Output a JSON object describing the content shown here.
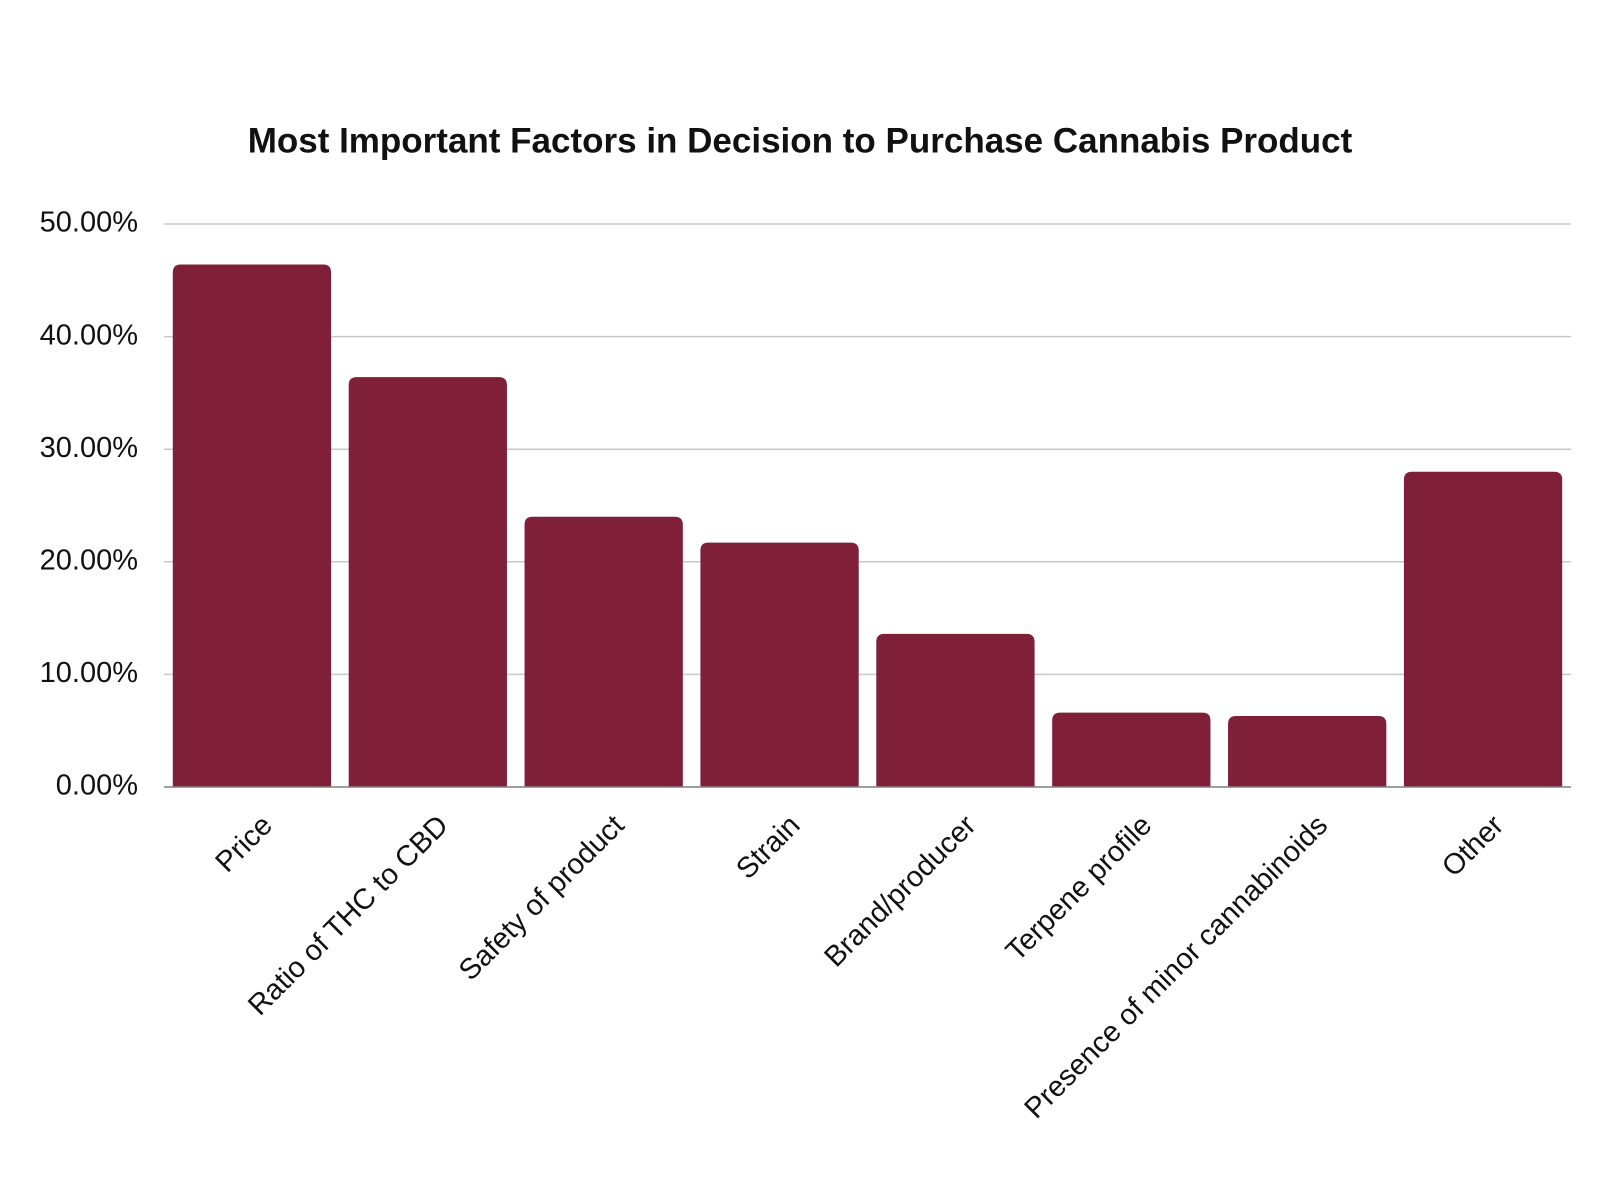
{
  "chart_data": {
    "type": "bar",
    "title": "Most Important Factors in Decision to Purchase Cannabis Product",
    "categories": [
      "Price",
      "Ratio of THC to CBD",
      "Safety of product",
      "Strain",
      "Brand/producer",
      "Terpene profile",
      "Presence of minor cannabinoids",
      "Other"
    ],
    "values": [
      46.4,
      36.4,
      24.0,
      21.7,
      13.6,
      6.6,
      6.3,
      28.0
    ],
    "color": "#7f1f3a",
    "ylim": [
      0,
      50
    ],
    "yticks": [
      {
        "value": 0,
        "label": "0.00%"
      },
      {
        "value": 10,
        "label": "10.00%"
      },
      {
        "value": 20,
        "label": "20.00%"
      },
      {
        "value": 30,
        "label": "30.00%"
      },
      {
        "value": 40,
        "label": "40.00%"
      },
      {
        "value": 50,
        "label": "50.00%"
      }
    ],
    "grid": true
  }
}
